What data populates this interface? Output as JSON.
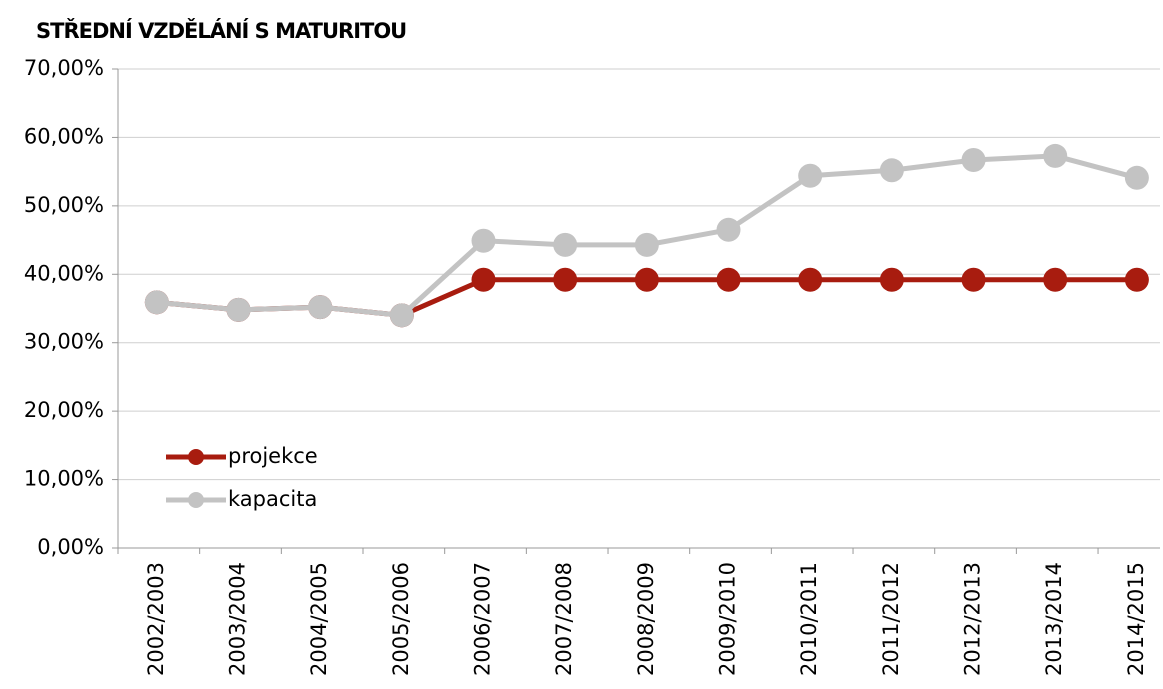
{
  "chart_data": {
    "type": "line",
    "title": "STŘEDNÍ VZDĚLÁNÍ S MATURITOU",
    "categories": [
      "2002/2003",
      "2003/2004",
      "2004/2005",
      "2005/2006",
      "2006/2007",
      "2007/2008",
      "2008/2009",
      "2009/2010",
      "2010/2011",
      "2011/2012",
      "2012/2013",
      "2013/2014",
      "2014/2015"
    ],
    "series": [
      {
        "name": "projekce",
        "color": "#a81c0f",
        "values": [
          35.9,
          34.8,
          35.2,
          34.0,
          39.2,
          39.2,
          39.2,
          39.2,
          39.2,
          39.2,
          39.2,
          39.2,
          39.2
        ]
      },
      {
        "name": "kapacita",
        "color": "#c3c3c3",
        "values": [
          35.9,
          34.8,
          35.2,
          34.0,
          44.9,
          44.3,
          44.3,
          46.5,
          54.4,
          55.2,
          56.7,
          57.3,
          54.1
        ]
      }
    ],
    "ylim": [
      0,
      70
    ],
    "yticks": [
      {
        "value": 0,
        "label": "0,00%"
      },
      {
        "value": 10,
        "label": "10,00%"
      },
      {
        "value": 20,
        "label": "20,00%"
      },
      {
        "value": 30,
        "label": "30,00%"
      },
      {
        "value": 40,
        "label": "40,00%"
      },
      {
        "value": 50,
        "label": "50,00%"
      },
      {
        "value": 60,
        "label": "60,00%"
      },
      {
        "value": 70,
        "label": "70,00%"
      }
    ],
    "grid": true,
    "legend": "lower-left"
  }
}
